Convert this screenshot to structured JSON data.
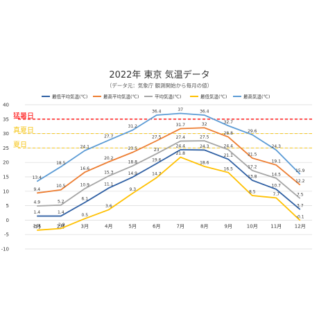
{
  "chart_data": {
    "type": "line",
    "title": "2022年 東京 気温データ",
    "subtitle": "（データ元：気象庁 観測開始から毎月の値）",
    "categories": [
      "1月",
      "2月",
      "3月",
      "4月",
      "5月",
      "6月",
      "7月",
      "8月",
      "9月",
      "10月",
      "11月",
      "12月"
    ],
    "ylim": [
      -10,
      40
    ],
    "yticks": [
      -10,
      -5,
      0,
      5,
      10,
      15,
      20,
      25,
      30,
      35,
      40
    ],
    "grid": true,
    "legend_position": "top",
    "series": [
      {
        "name": "最低平均気温(℃)",
        "color": "#2e5fa3",
        "values": [
          1.4,
          1.4,
          6.1,
          11.1,
          14.9,
          19.6,
          24.4,
          24.3,
          21.1,
          13.8,
          10.7,
          3.7
        ]
      },
      {
        "name": "最高平均気温(℃)",
        "color": "#ed7d31",
        "values": [
          9.4,
          10.5,
          16.6,
          20.2,
          23.5,
          27.5,
          31.7,
          32.0,
          28.8,
          21.5,
          19.1,
          12.2
        ]
      },
      {
        "name": "平均気温(℃)",
        "color": "#a5a5a5",
        "values": [
          4.9,
          5.2,
          10.9,
          15.3,
          18.8,
          23.0,
          27.4,
          27.5,
          24.4,
          17.2,
          14.5,
          7.5
        ]
      },
      {
        "name": "最低気温(℃)",
        "color": "#ffc000",
        "values": [
          -3.5,
          -2.9,
          0.5,
          3.6,
          9.3,
          14.7,
          21.8,
          18.6,
          16.5,
          8.5,
          7.7,
          -0.1
        ]
      },
      {
        "name": "最高気温(℃)",
        "color": "#5b9bd5",
        "values": [
          13.4,
          18.5,
          24.1,
          27.7,
          31.2,
          36.4,
          37.0,
          36.4,
          32.7,
          29.6,
          24.3,
          15.9
        ]
      }
    ],
    "reference_lines": [
      {
        "label": "猛暑日",
        "value": 35,
        "color": "#ff0000",
        "style": "dashed"
      },
      {
        "label": "真夏日",
        "value": 30,
        "color": "#f5c518",
        "style": "dashed"
      },
      {
        "label": "夏日",
        "value": 25,
        "color": "#f5c518",
        "style": "dashed"
      }
    ]
  }
}
